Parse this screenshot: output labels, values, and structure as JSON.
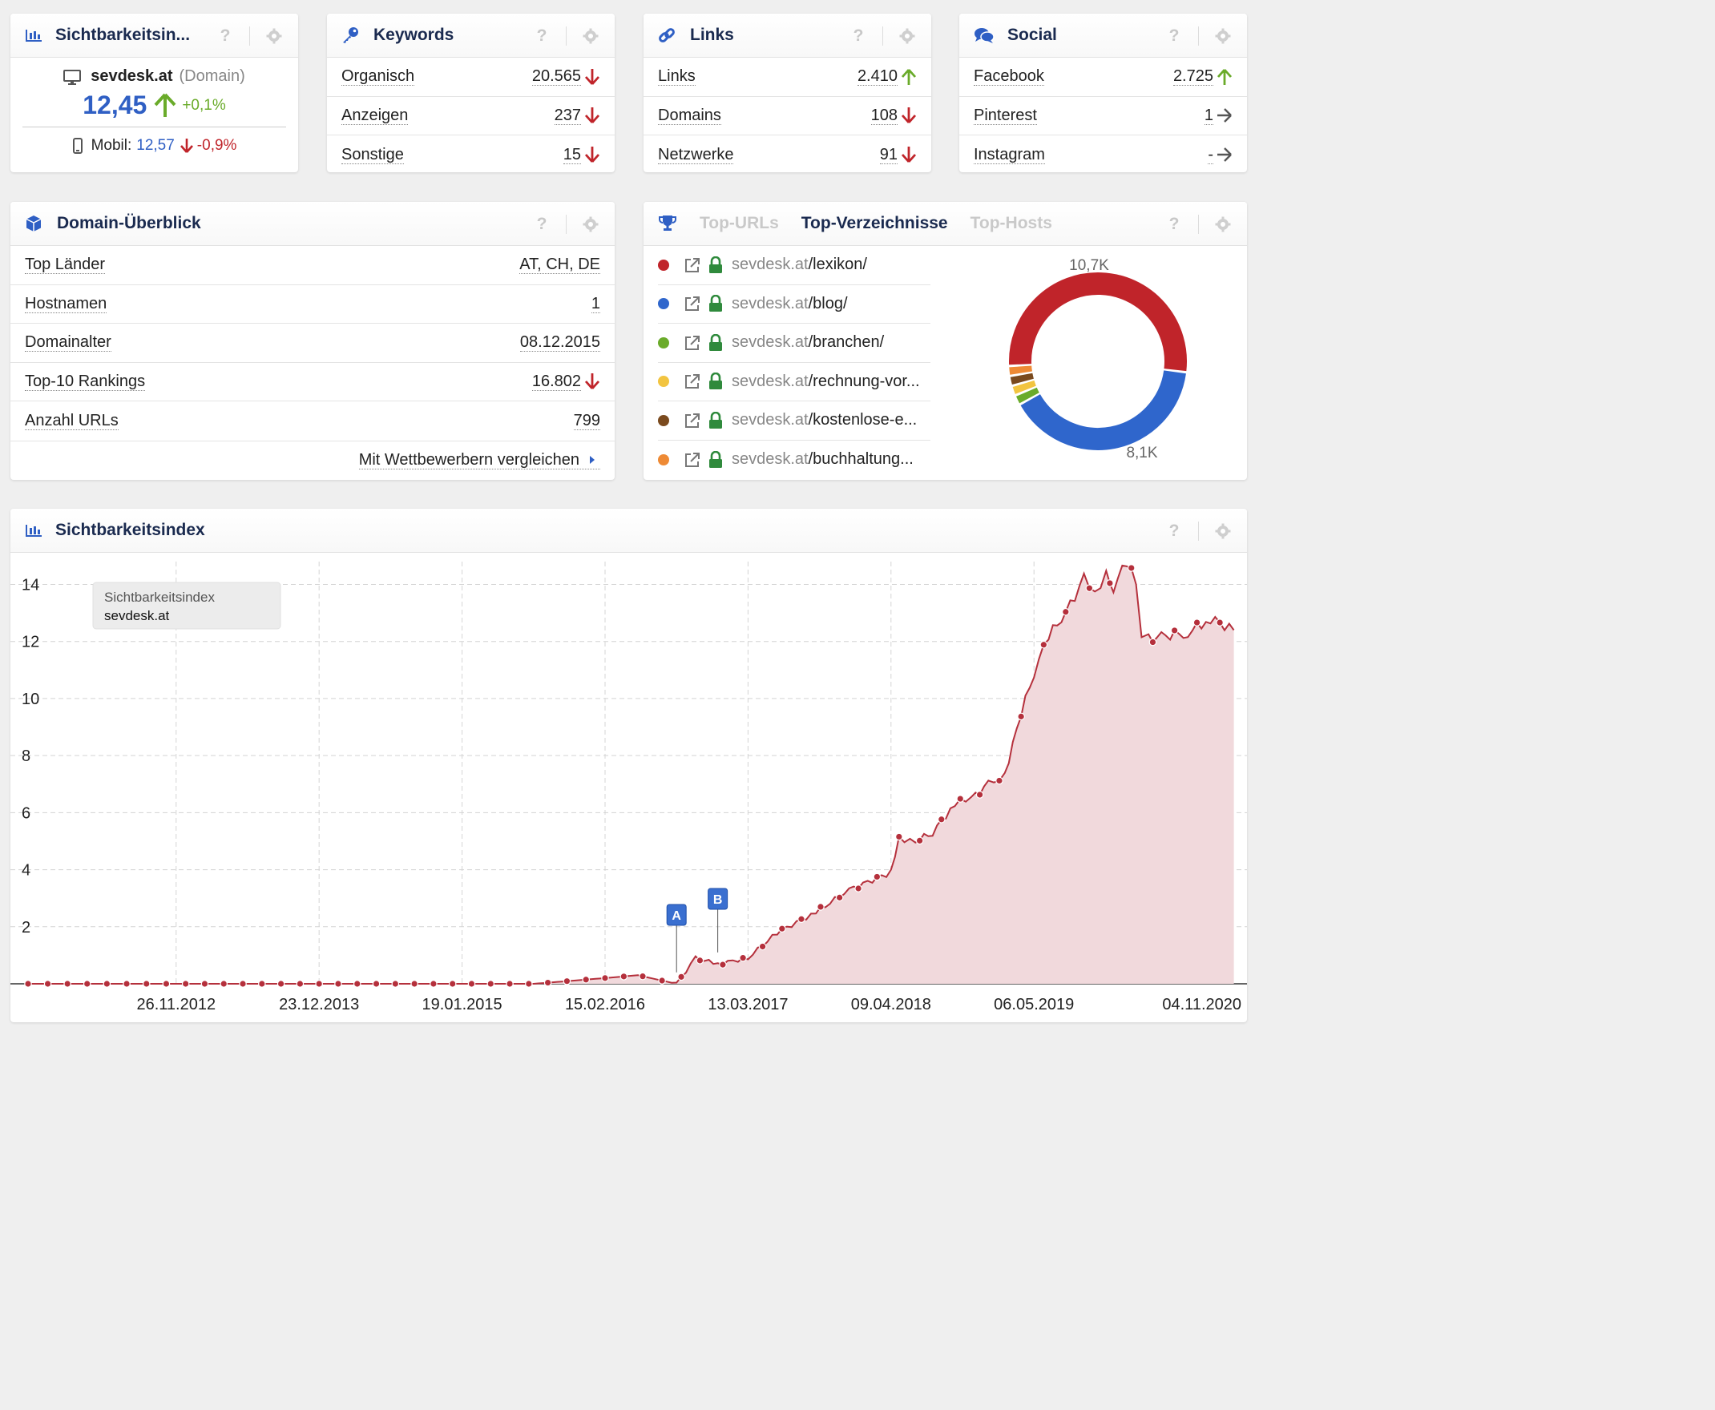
{
  "vis_card": {
    "title": "Sichtbarkeitsin...",
    "domain": "sevdesk.at",
    "domain_type": "(Domain)",
    "value": "12,45",
    "change": "+0,1%",
    "mobile_label": "Mobil:",
    "mobile_value": "12,57",
    "mobile_change": "-0,9%"
  },
  "keywords_card": {
    "title": "Keywords",
    "rows": [
      {
        "label": "Organisch",
        "value": "20.565",
        "trend": "down"
      },
      {
        "label": "Anzeigen",
        "value": "237",
        "trend": "down"
      },
      {
        "label": "Sonstige",
        "value": "15",
        "trend": "down"
      }
    ]
  },
  "links_card": {
    "title": "Links",
    "rows": [
      {
        "label": "Links",
        "value": "2.410",
        "trend": "up"
      },
      {
        "label": "Domains",
        "value": "108",
        "trend": "down"
      },
      {
        "label": "Netzwerke",
        "value": "91",
        "trend": "down"
      }
    ]
  },
  "social_card": {
    "title": "Social",
    "rows": [
      {
        "label": "Facebook",
        "value": "2.725",
        "trend": "up"
      },
      {
        "label": "Pinterest",
        "value": "1",
        "trend": "flat"
      },
      {
        "label": "Instagram",
        "value": "-",
        "trend": "flat"
      }
    ]
  },
  "help_label": "?",
  "overview_card": {
    "title": "Domain-Überblick",
    "rows": [
      {
        "label": "Top Länder",
        "value": "AT, CH, DE",
        "trend": ""
      },
      {
        "label": "Hostnamen",
        "value": "1",
        "trend": ""
      },
      {
        "label": "Domainalter",
        "value": "08.12.2015",
        "trend": ""
      },
      {
        "label": "Top-10 Rankings",
        "value": "16.802",
        "trend": "down"
      },
      {
        "label": "Anzahl URLs",
        "value": "799",
        "trend": ""
      }
    ],
    "compare_link": "Mit Wettbewerbern vergleichen"
  },
  "dirs_card": {
    "tabs": [
      "Top-URLs",
      "Top-Verzeichnisse",
      "Top-Hosts"
    ],
    "active_tab": 1,
    "domain_part": "sevdesk.at",
    "rows": [
      {
        "path": "/lexikon/",
        "color": "#c0242a"
      },
      {
        "path": "/blog/",
        "color": "#2f66cc"
      },
      {
        "path": "/branchen/",
        "color": "#6aab2a"
      },
      {
        "path": "/rechnung-vor...",
        "color": "#f2c440"
      },
      {
        "path": "/kostenlose-e...",
        "color": "#7a4a1e"
      },
      {
        "path": "/buchhaltung...",
        "color": "#ee8a35"
      }
    ],
    "donut": {
      "label_top": "10,7K",
      "label_bottom": "8,1K",
      "shares": [
        0.528,
        0.4,
        0.018,
        0.018,
        0.018,
        0.018
      ]
    }
  },
  "index_card": {
    "title": "Sichtbarkeitsindex"
  },
  "chart_data": {
    "type": "area",
    "title": "Sichtbarkeitsindex",
    "legend": {
      "line1": "Sichtbarkeitsindex",
      "line2": "sevdesk.at"
    },
    "series_color": "#b5303c",
    "fill_color": "#f1d9dc",
    "y_ticks": [
      2,
      4,
      6,
      8,
      10,
      12,
      14
    ],
    "ylim": [
      0,
      14.8
    ],
    "x_ticks": [
      "26.11.2012",
      "23.12.2013",
      "19.01.2015",
      "15.02.2016",
      "13.03.2017",
      "09.04.2018",
      "06.05.2019",
      "04.11.2020"
    ],
    "x": [
      "2011-10-17",
      "2012-04-23",
      "2012-11-26",
      "2013-06-10",
      "2013-12-23",
      "2014-07-07",
      "2015-01-19",
      "2015-08-03",
      "2016-02-15",
      "2016-05-15",
      "2016-08-29",
      "2016-10-20",
      "2016-12-20",
      "2017-03-13",
      "2017-06-01",
      "2017-09-15",
      "2017-12-15",
      "2018-04-09",
      "2018-05-01",
      "2018-06-15",
      "2018-08-01",
      "2018-10-01",
      "2018-11-15",
      "2019-01-01",
      "2019-02-15",
      "2019-03-20",
      "2019-05-06",
      "2019-06-15",
      "2019-08-01",
      "2019-09-20",
      "2019-10-20",
      "2019-11-20",
      "2019-12-10",
      "2020-01-15",
      "2020-02-10",
      "2020-02-25",
      "2020-03-15",
      "2020-05-01",
      "2020-07-01",
      "2020-09-01",
      "2020-11-04"
    ],
    "y": [
      0.0,
      0.0,
      0.0,
      0.0,
      0.0,
      0.0,
      0.0,
      0.0,
      0.2,
      0.3,
      0.0,
      0.9,
      0.7,
      0.9,
      1.8,
      2.5,
      3.3,
      3.9,
      5.1,
      5.0,
      5.3,
      6.3,
      6.5,
      7.0,
      7.3,
      9.0,
      10.9,
      12.2,
      13.0,
      14.2,
      13.6,
      14.5,
      13.9,
      14.8,
      14.0,
      12.0,
      12.1,
      12.2,
      12.3,
      12.8,
      12.4
    ],
    "annotations": [
      {
        "label": "A",
        "x": "2016-08-29"
      },
      {
        "label": "B",
        "x": "2016-12-20"
      }
    ]
  }
}
